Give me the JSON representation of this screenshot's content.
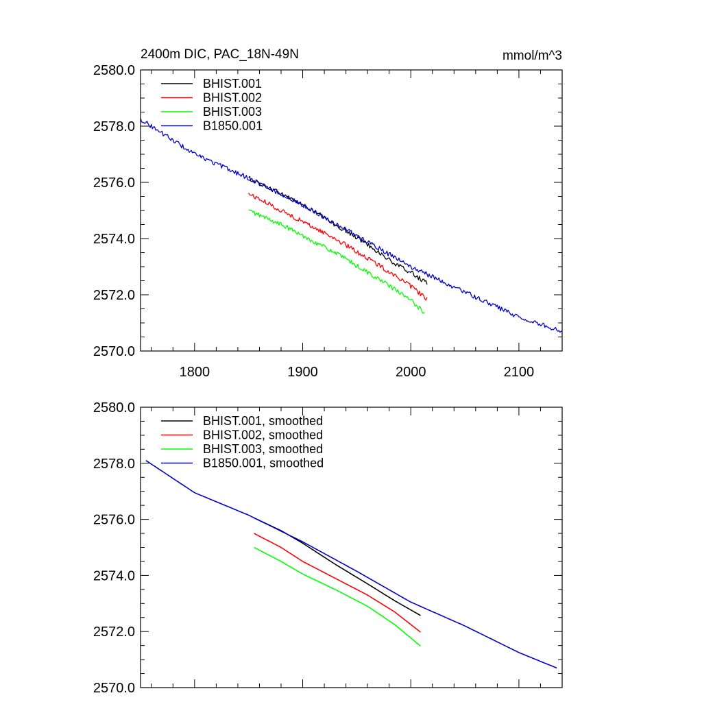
{
  "chart_data": [
    {
      "type": "line",
      "title": "2400m DIC, PAC_18N-49N",
      "units": "mmol/m^3",
      "xlabel": "",
      "ylabel": "",
      "xlim": [
        1750,
        2140
      ],
      "ylim": [
        2570,
        2580
      ],
      "xticks": [
        1800,
        1900,
        2000,
        2100
      ],
      "xtick_labels": [
        "1800",
        "1900",
        "2000",
        "2100"
      ],
      "yticks": [
        2570,
        2572,
        2574,
        2576,
        2578,
        2580
      ],
      "ytick_labels": [
        "2570.0",
        "2572.0",
        "2574.0",
        "2576.0",
        "2578.0",
        "2580.0"
      ],
      "grid": false,
      "legend_position": "top-left",
      "series": [
        {
          "name": "BHIST.001",
          "color": "#000000",
          "noisy": true,
          "x": [
            1850,
            1880,
            1900,
            1930,
            1960,
            1985,
            2000,
            2015
          ],
          "y": [
            2576.15,
            2575.6,
            2575.2,
            2574.5,
            2573.8,
            2573.1,
            2572.8,
            2572.4
          ]
        },
        {
          "name": "BHIST.002",
          "color": "#ff0000",
          "noisy": true,
          "x": [
            1850,
            1880,
            1900,
            1930,
            1960,
            1985,
            2000,
            2015
          ],
          "y": [
            2575.6,
            2575.0,
            2574.6,
            2574.0,
            2573.3,
            2572.7,
            2572.3,
            2571.85
          ]
        },
        {
          "name": "BHIST.003",
          "color": "#00ff00",
          "noisy": true,
          "x": [
            1850,
            1880,
            1900,
            1930,
            1960,
            1985,
            2000,
            2013
          ],
          "y": [
            2575.0,
            2574.5,
            2574.1,
            2573.5,
            2572.8,
            2572.2,
            2571.8,
            2571.35
          ]
        },
        {
          "name": "B1850.001",
          "color": "#0000cc",
          "noisy": true,
          "x": [
            1750,
            1800,
            1850,
            1900,
            1950,
            2000,
            2050,
            2100,
            2140
          ],
          "y": [
            2578.25,
            2577.0,
            2576.15,
            2575.2,
            2574.1,
            2573.0,
            2572.1,
            2571.2,
            2570.7
          ]
        }
      ]
    },
    {
      "type": "line",
      "title": "",
      "xlabel": "",
      "ylabel": "",
      "xlim": [
        1750,
        2140
      ],
      "ylim": [
        2570,
        2580
      ],
      "xticks": [
        1800,
        1900,
        2000,
        2100
      ],
      "xtick_labels": [
        "",
        "",
        "",
        ""
      ],
      "yticks": [
        2570,
        2572,
        2574,
        2576,
        2578,
        2580
      ],
      "ytick_labels": [
        "2570.0",
        "2572.0",
        "2574.0",
        "2576.0",
        "2578.0",
        "2580.0"
      ],
      "grid": false,
      "legend_position": "top-left",
      "series": [
        {
          "name": "BHIST.001, smoothed",
          "color": "#000000",
          "noisy": false,
          "x": [
            1855,
            1880,
            1900,
            1930,
            1960,
            1985,
            2010
          ],
          "y": [
            2576.05,
            2575.6,
            2575.15,
            2574.4,
            2573.7,
            2573.1,
            2572.55
          ]
        },
        {
          "name": "BHIST.002, smoothed",
          "color": "#ff0000",
          "noisy": false,
          "x": [
            1855,
            1880,
            1900,
            1930,
            1960,
            1985,
            2010
          ],
          "y": [
            2575.5,
            2575.0,
            2574.5,
            2573.9,
            2573.3,
            2572.7,
            2571.95
          ]
        },
        {
          "name": "BHIST.003, smoothed",
          "color": "#00ff00",
          "noisy": false,
          "x": [
            1855,
            1880,
            1900,
            1930,
            1960,
            1985,
            2010
          ],
          "y": [
            2575.0,
            2574.5,
            2574.05,
            2573.5,
            2572.9,
            2572.25,
            2571.45
          ]
        },
        {
          "name": "B1850.001, smoothed",
          "color": "#0000cc",
          "noisy": false,
          "x": [
            1755,
            1800,
            1850,
            1900,
            1950,
            2000,
            2050,
            2100,
            2135
          ],
          "y": [
            2578.1,
            2576.95,
            2576.15,
            2575.2,
            2574.15,
            2573.05,
            2572.2,
            2571.25,
            2570.7
          ]
        }
      ]
    }
  ]
}
